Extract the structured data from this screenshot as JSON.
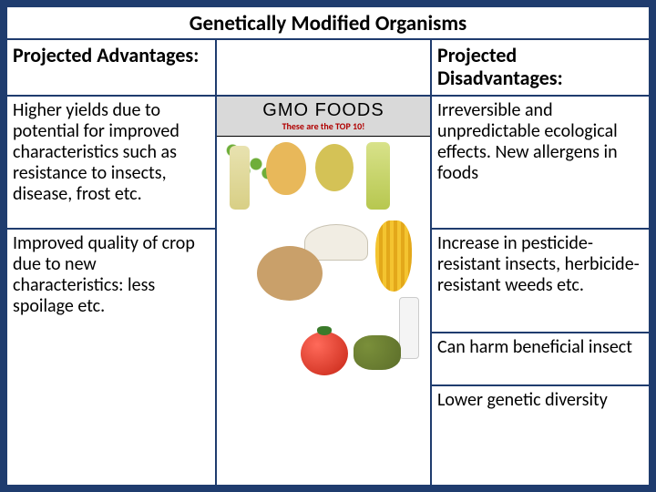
{
  "title": "Genetically Modified Organisms",
  "colors": {
    "frame_border": "#1f3c6e",
    "background": "#1f3c6e",
    "page": "#ffffff",
    "text": "#000000"
  },
  "image_banner": {
    "line1": "GMO FOODS",
    "line2": "These are the TOP 10!",
    "banner_bg": "#d9d9d9",
    "line2_color": "#b00000"
  },
  "left": {
    "header": "Projected Advantages:",
    "rows": [
      "Higher yields due to potential for improved characteristics such as resistance to insects, disease, frost etc.",
      "Improved quality of crop due to new characteristics: less spoilage etc."
    ]
  },
  "right": {
    "header": "Projected Disadvantages:",
    "rows": [
      "Irreversible and unpredictable ecological  effects.\nNew allergens in foods",
      "Increase in pesticide-resistant insects, herbicide- resistant weeds etc.",
      "Can harm beneficial insect",
      "Lower genetic diversity"
    ]
  }
}
